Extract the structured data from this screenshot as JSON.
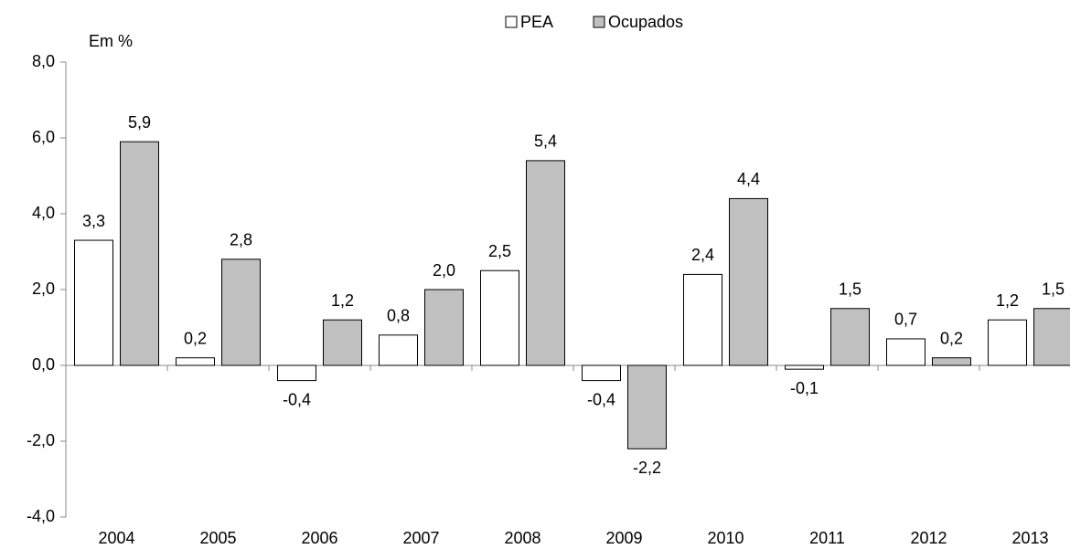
{
  "chart_data": {
    "type": "bar",
    "y_label": "Em %",
    "categories": [
      "2004",
      "2005",
      "2006",
      "2007",
      "2008",
      "2009",
      "2010",
      "2011",
      "2012",
      "2013"
    ],
    "series": [
      {
        "name": "PEA",
        "color": "#ffffff",
        "values": [
          3.3,
          0.2,
          -0.4,
          0.8,
          2.5,
          -0.4,
          2.4,
          -0.1,
          0.7,
          1.2
        ],
        "value_labels": [
          "3,3",
          "0,2",
          "-0,4",
          "0,8",
          "2,5",
          "-0,4",
          "2,4",
          "-0,1",
          "0,7",
          "1,2"
        ]
      },
      {
        "name": "Ocupados",
        "color": "#c0c0c0",
        "values": [
          5.9,
          2.8,
          1.2,
          2.0,
          5.4,
          -2.2,
          4.4,
          1.5,
          0.2,
          1.5
        ],
        "value_labels": [
          "5,9",
          "2,8",
          "1,2",
          "2,0",
          "5,4",
          "-2,2",
          "4,4",
          "1,5",
          "0,2",
          "1,5"
        ]
      }
    ],
    "ylim": [
      -4,
      8
    ],
    "yticks": [
      {
        "value": -4,
        "label": "-4,0"
      },
      {
        "value": -2,
        "label": "-2,0"
      },
      {
        "value": 0,
        "label": "0,0"
      },
      {
        "value": 2,
        "label": "2,0"
      },
      {
        "value": 4,
        "label": "4,0"
      },
      {
        "value": 6,
        "label": "6,0"
      },
      {
        "value": 8,
        "label": "8,0"
      }
    ],
    "grid": false,
    "legend": "top"
  }
}
